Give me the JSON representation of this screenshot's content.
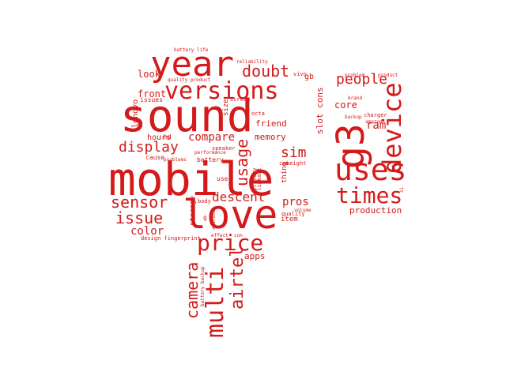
{
  "words": [
    {
      "text": "mobile",
      "color": "#d41a1a",
      "vertical": false
    },
    {
      "text": "sound",
      "color": "#d41a1a",
      "vertical": false
    },
    {
      "text": "love",
      "color": "#d41a1a",
      "vertical": false
    },
    {
      "text": "year",
      "color": "#d41a1a",
      "vertical": false
    },
    {
      "text": "versions",
      "color": "#d41a1a",
      "vertical": false
    },
    {
      "text": "g3",
      "color": "#d41a1a",
      "vertical": true
    },
    {
      "text": "uses",
      "color": "#d41a1a",
      "vertical": false
    },
    {
      "text": "device",
      "color": "#d41a1a",
      "vertical": true
    },
    {
      "text": "times",
      "color": "#d41a1a",
      "vertical": false
    },
    {
      "text": "price",
      "color": "#d41a1a",
      "vertical": false
    },
    {
      "text": "multi",
      "color": "#d41a1a",
      "vertical": true
    },
    {
      "text": "airtel",
      "color": "#d41a1a",
      "vertical": true
    },
    {
      "text": "camera",
      "color": "#d41a1a",
      "vertical": true
    },
    {
      "text": "sensor",
      "color": "#d41a1a",
      "vertical": false
    },
    {
      "text": "issue",
      "color": "#d41a1a",
      "vertical": false
    },
    {
      "text": "display",
      "color": "#d41a1a",
      "vertical": false
    },
    {
      "text": "people",
      "color": "#d41a1a",
      "vertical": false
    },
    {
      "text": "doubt",
      "color": "#d41a1a",
      "vertical": false
    },
    {
      "text": "usage",
      "color": "#d41a1a",
      "vertical": true
    },
    {
      "text": "descent",
      "color": "#d41a1a",
      "vertical": false
    },
    {
      "text": "sim",
      "color": "#d41a1a",
      "vertical": false
    },
    {
      "text": "compare",
      "color": "#d41a1a",
      "vertical": false
    },
    {
      "text": "pros",
      "color": "#d41a1a",
      "vertical": false
    },
    {
      "text": "color",
      "color": "#d41a1a",
      "vertical": false
    },
    {
      "text": "ram",
      "color": "#d41a1a",
      "vertical": false
    },
    {
      "text": "production",
      "color": "#d41a1a",
      "vertical": false
    },
    {
      "text": "look",
      "color": "#d41a1a",
      "vertical": false
    },
    {
      "text": "front",
      "color": "#d41a1a",
      "vertical": false
    },
    {
      "text": "core",
      "color": "#d41a1a",
      "vertical": false
    },
    {
      "text": "memory",
      "color": "#d41a1a",
      "vertical": false
    },
    {
      "text": "friend",
      "color": "#d41a1a",
      "vertical": false
    },
    {
      "text": "apps",
      "color": "#d41a1a",
      "vertical": false
    },
    {
      "text": "slot cons",
      "color": "#d41a1a",
      "vertical": true
    },
    {
      "text": "lenovo",
      "color": "#d41a1a",
      "vertical": true
    },
    {
      "text": "hours",
      "color": "#d41a1a",
      "vertical": false
    },
    {
      "text": "gb",
      "color": "#d41a1a",
      "vertical": false
    },
    {
      "text": "item",
      "color": "#d41a1a",
      "vertical": false
    },
    {
      "text": "thing",
      "color": "#d41a1a",
      "vertical": true
    },
    {
      "text": "size",
      "color": "#d41a1a",
      "vertical": true
    },
    {
      "text": "storage",
      "color": "#d41a1a",
      "vertical": true
    },
    {
      "text": "issues",
      "color": "#d41a1a",
      "vertical": false
    },
    {
      "text": "hd",
      "color": "#d41a1a",
      "vertical": false
    },
    {
      "text": "cause",
      "color": "#d41a1a",
      "vertical": false
    },
    {
      "text": "battery",
      "color": "#d41a1a",
      "vertical": false
    },
    {
      "text": "use",
      "color": "#d41a1a",
      "vertical": false
    },
    {
      "text": "body",
      "color": "#d41a1a",
      "vertical": false
    },
    {
      "text": "height",
      "color": "#d41a1a",
      "vertical": false
    },
    {
      "text": "quality",
      "color": "#d41a1a",
      "vertical": false
    },
    {
      "text": "vivo",
      "color": "#d41a1a",
      "vertical": false
    },
    {
      "text": "screen",
      "color": "#d41a1a",
      "vertical": false
    },
    {
      "text": "octa",
      "color": "#d41a1a",
      "vertical": false
    },
    {
      "text": "cam",
      "color": "#d41a1a",
      "vertical": false
    },
    {
      "text": "speaker",
      "color": "#d41a1a",
      "vertical": false
    },
    {
      "text": "performance",
      "color": "#d41a1a",
      "vertical": false
    },
    {
      "text": "delivery",
      "color": "#d41a1a",
      "vertical": true
    },
    {
      "text": "flipkart",
      "color": "#d41a1a",
      "vertical": true
    },
    {
      "text": "problems",
      "color": "#d41a1a",
      "vertical": false
    },
    {
      "text": "design fingerprint",
      "color": "#d41a1a",
      "vertical": false
    },
    {
      "text": "effect",
      "color": "#d41a1a",
      "vertical": false
    },
    {
      "text": "con",
      "color": "#d41a1a",
      "vertical": false
    },
    {
      "text": "android",
      "color": "#d41a1a",
      "vertical": true
    },
    {
      "text": "volume",
      "color": "#d41a1a",
      "vertical": false
    },
    {
      "text": "g",
      "color": "#d41a1a",
      "vertical": false
    },
    {
      "text": "battery life",
      "color": "#d41a1a",
      "vertical": false
    },
    {
      "text": "reliability",
      "color": "#d41a1a",
      "vertical": false
    },
    {
      "text": "quality product",
      "color": "#d41a1a",
      "vertical": false
    },
    {
      "text": "problem",
      "color": "#d41a1a",
      "vertical": false
    },
    {
      "text": "product",
      "color": "#d41a1a",
      "vertical": false
    },
    {
      "text": "brand",
      "color": "#d41a1a",
      "vertical": false
    },
    {
      "text": "backup",
      "color": "#d41a1a",
      "vertical": false
    },
    {
      "text": "charger",
      "color": "#d41a1a",
      "vertical": false
    },
    {
      "text": "amazon",
      "color": "#d41a1a",
      "vertical": false
    },
    {
      "text": "si",
      "color": "#d41a1a",
      "vertical": true
    },
    {
      "text": "battery backup",
      "color": "#d41a1a",
      "vertical": true
    }
  ]
}
